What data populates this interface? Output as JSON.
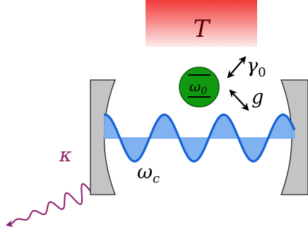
{
  "colors": {
    "reservoir_top": "#f23a3a",
    "reservoir_bottom": "#fdeaea",
    "reservoir_label": "#5a0000",
    "mirror_fill": "#c4c4c4",
    "mirror_stroke": "#222222",
    "wave_line": "#1463d6",
    "wave_fill": "#79adf0",
    "atom_fill": "#119a11",
    "atom_stroke": "#0a5e0a",
    "photon": "#8a1a6a",
    "arrow": "#000000"
  },
  "labels": {
    "reservoir": "T",
    "atom": "ω",
    "atom_sub": "0",
    "decay": "γ",
    "decay_sub": "0",
    "coupling": "g",
    "cavity": "ω",
    "cavity_sub": "c",
    "loss": "κ"
  },
  "icons": {
    "atom": "two-level-atom-icon",
    "photon": "wavy-photon-arrow-icon",
    "decay_arrow": "double-headed-arrow-icon",
    "coupling_arrow": "double-headed-arrow-icon"
  }
}
